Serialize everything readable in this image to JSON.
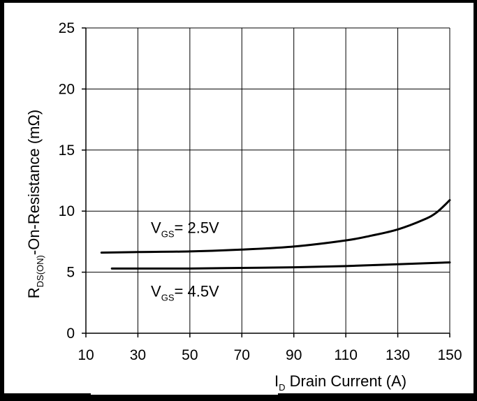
{
  "chart_data": {
    "type": "line",
    "title": "",
    "xlabel": "I",
    "xlabel_sub": "D",
    "xlabel_rest": " Drain Current (A)",
    "ylabel": "R",
    "ylabel_sub": "DS(ON)",
    "ylabel_rest": "-On-Resistance (mΩ)",
    "xlim": [
      10,
      150
    ],
    "ylim": [
      0,
      25
    ],
    "x_ticks": [
      10,
      30,
      50,
      70,
      90,
      110,
      130,
      150
    ],
    "x_tick_labels": [
      "10",
      "30",
      "50",
      "70",
      "90",
      "110",
      "130",
      "150"
    ],
    "y_ticks": [
      0,
      5,
      10,
      15,
      20,
      25
    ],
    "y_tick_labels": [
      "0",
      "5",
      "10",
      "15",
      "20",
      "25"
    ],
    "grid": true,
    "colors": {
      "background": "#ffffff",
      "line": "#000000",
      "grid": "#000000"
    },
    "series": [
      {
        "x": [
          16,
          30,
          50,
          70,
          90,
          110,
          120,
          130,
          140,
          145,
          150
        ],
        "values": [
          6.6,
          6.65,
          6.7,
          6.85,
          7.1,
          7.6,
          8.0,
          8.5,
          9.3,
          9.9,
          10.9
        ]
      },
      {
        "x": [
          20,
          50,
          70,
          90,
          110,
          130,
          150
        ],
        "values": [
          5.3,
          5.3,
          5.35,
          5.4,
          5.5,
          5.65,
          5.8
        ]
      }
    ],
    "annotations": [
      {
        "prefix": "V",
        "sub": "GS",
        "text": "= 2.5V",
        "x": 35,
        "y": 8.2
      },
      {
        "prefix": "V",
        "sub": "GS",
        "text": "= 4.5V",
        "x": 35,
        "y": 3.0
      }
    ]
  }
}
